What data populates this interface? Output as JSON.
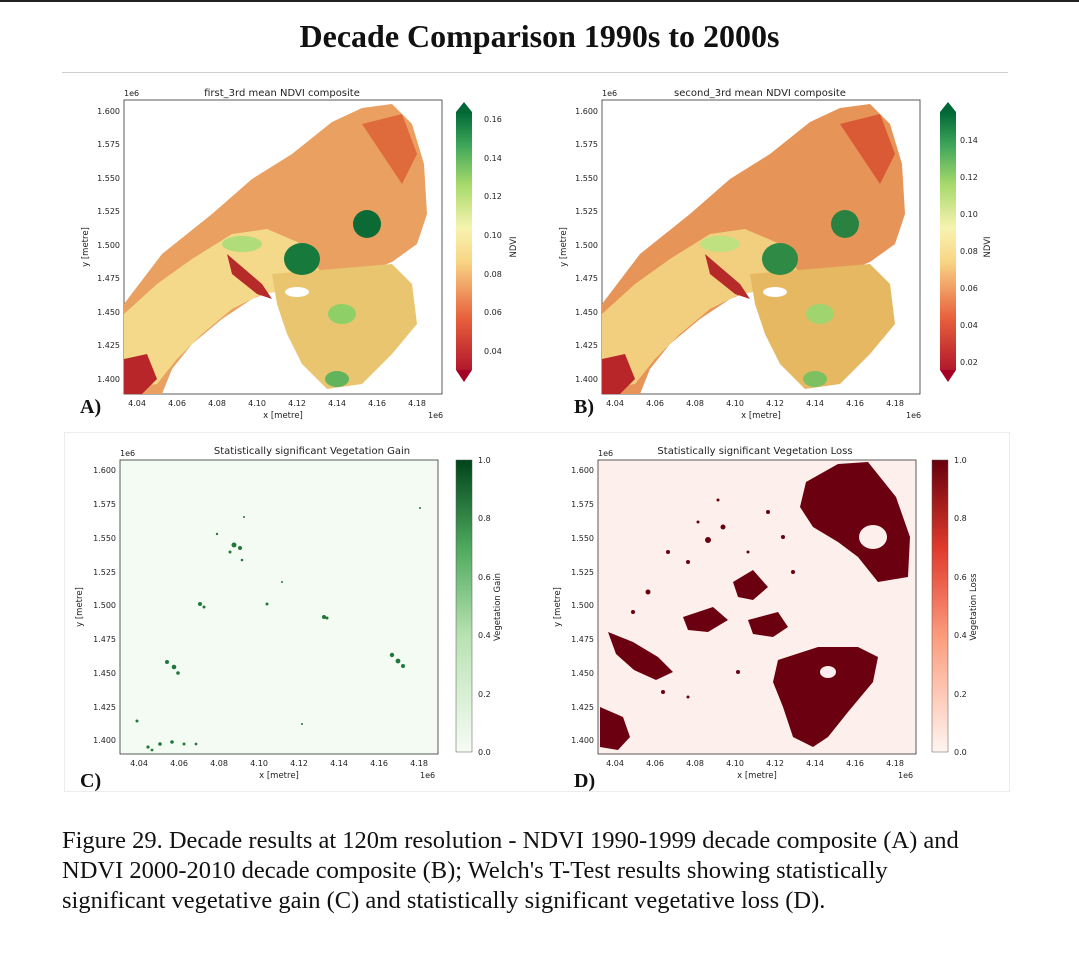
{
  "heading": "Decade Comparison 1990s to 2000s",
  "caption": "Figure 29. Decade results at 120m resolution - NDVI 1990-1999 decade composite (A) and NDVI 2000-2010 decade composite (B); Welch's T-Test results showing statistically significant vegetative gain (C) and statistically significant vegetative loss (D).",
  "colors": {
    "ndvi_low": "#c0262a",
    "ndvi_mid": "#f5f0a0",
    "ndvi_high": "#0a6e33",
    "gain": "#0b6a32",
    "loss": "#6b0010",
    "loss_bg": "#fdf0ec",
    "gain_bg": "#f4fbf2"
  },
  "panels": [
    {
      "label": "A)",
      "title": "first_3rd mean NDVI composite",
      "xlabel": "x [metre]",
      "ylabel": "y [metre]",
      "x_ticks": [
        "4.04",
        "4.06",
        "4.08",
        "4.10",
        "4.12",
        "4.14",
        "4.16",
        "4.18"
      ],
      "y_ticks": [
        "1.600",
        "1.575",
        "1.550",
        "1.525",
        "1.500",
        "1.475",
        "1.450",
        "1.425",
        "1.400"
      ],
      "x_offset": "1e6",
      "y_offset": "1e6",
      "cbar_label": "NDVI",
      "cbar_ticks": [
        "0.16",
        "0.14",
        "0.12",
        "0.10",
        "0.08",
        "0.06",
        "0.04"
      ]
    },
    {
      "label": "B)",
      "title": "second_3rd mean NDVI composite",
      "xlabel": "x [metre]",
      "ylabel": "y [metre]",
      "x_ticks": [
        "4.04",
        "4.06",
        "4.08",
        "4.10",
        "4.12",
        "4.14",
        "4.16",
        "4.18"
      ],
      "y_ticks": [
        "1.600",
        "1.575",
        "1.550",
        "1.525",
        "1.500",
        "1.475",
        "1.450",
        "1.425",
        "1.400"
      ],
      "x_offset": "1e6",
      "y_offset": "1e6",
      "cbar_label": "NDVI",
      "cbar_ticks": [
        "0.14",
        "0.12",
        "0.10",
        "0.08",
        "0.06",
        "0.04",
        "0.02"
      ]
    },
    {
      "label": "C)",
      "title": "Statistically significant Vegetation Gain",
      "xlabel": "x [metre]",
      "ylabel": "y [metre]",
      "x_ticks": [
        "4.04",
        "4.06",
        "4.08",
        "4.10",
        "4.12",
        "4.14",
        "4.16",
        "4.18"
      ],
      "y_ticks": [
        "1.600",
        "1.575",
        "1.550",
        "1.525",
        "1.500",
        "1.475",
        "1.450",
        "1.425",
        "1.400"
      ],
      "x_offset": "1e6",
      "y_offset": "1e6",
      "cbar_label": "Vegetation Gain",
      "cbar_ticks": [
        "1.0",
        "0.8",
        "0.6",
        "0.4",
        "0.2",
        "0.0"
      ]
    },
    {
      "label": "D)",
      "title": "Statistically significant Vegetation Loss",
      "xlabel": "x [metre]",
      "ylabel": "y [metre]",
      "x_ticks": [
        "4.04",
        "4.06",
        "4.08",
        "4.10",
        "4.12",
        "4.14",
        "4.16",
        "4.18"
      ],
      "y_ticks": [
        "1.600",
        "1.575",
        "1.550",
        "1.525",
        "1.500",
        "1.475",
        "1.450",
        "1.425",
        "1.400"
      ],
      "x_offset": "1e6",
      "y_offset": "1e6",
      "cbar_label": "Vegetation Loss",
      "cbar_ticks": [
        "1.0",
        "0.8",
        "0.6",
        "0.4",
        "0.2",
        "0.0"
      ]
    }
  ]
}
